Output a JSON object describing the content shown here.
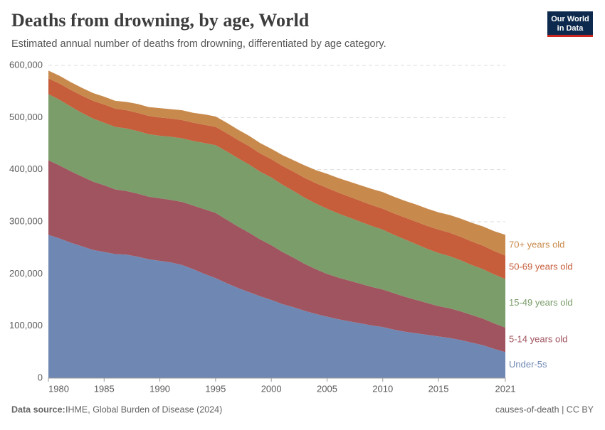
{
  "chart_data": {
    "type": "area",
    "stacked": true,
    "title": "Deaths from drowning, by age, World",
    "subtitle": "Estimated annual number of deaths from drowning, differentiated by age category.",
    "source_label": "Data source:",
    "source": "IHME, Global Burden of Disease (2024)",
    "footer_right": "causes-of-death | CC BY",
    "logo_lines": [
      "Our World",
      "in Data"
    ],
    "x": [
      1980,
      1981,
      1982,
      1983,
      1984,
      1985,
      1986,
      1987,
      1988,
      1989,
      1990,
      1991,
      1992,
      1993,
      1994,
      1995,
      1996,
      1997,
      1998,
      1999,
      2000,
      2001,
      2002,
      2003,
      2004,
      2005,
      2006,
      2007,
      2008,
      2009,
      2010,
      2011,
      2012,
      2013,
      2014,
      2015,
      2016,
      2017,
      2018,
      2019,
      2020,
      2021
    ],
    "xlim": [
      1980,
      2021
    ],
    "xticks": [
      1980,
      1985,
      1990,
      1995,
      2000,
      2005,
      2010,
      2015,
      2021
    ],
    "ylim": [
      0,
      600000
    ],
    "yticks": [
      0,
      {
        "value": 100000,
        "label": "100,000"
      },
      {
        "value": 200000,
        "label": "200,000"
      },
      {
        "value": 300000,
        "label": "300,000"
      },
      {
        "value": 400000,
        "label": "400,000"
      },
      {
        "value": 500000,
        "label": "500,000"
      },
      {
        "value": 600000,
        "label": "600,000"
      }
    ],
    "grid": true,
    "legend": "right",
    "series": [
      {
        "name": "Under-5s",
        "color": "#6f88b3",
        "values": [
          275000,
          268000,
          260000,
          253000,
          246000,
          242000,
          238000,
          237000,
          233000,
          228000,
          225000,
          222000,
          217000,
          209000,
          200000,
          192000,
          182000,
          173000,
          165000,
          157000,
          150000,
          142000,
          136000,
          129000,
          123000,
          118000,
          113000,
          109000,
          105000,
          101000,
          98000,
          93000,
          89000,
          86000,
          83000,
          80000,
          77000,
          73000,
          68000,
          63000,
          56000,
          50000
        ]
      },
      {
        "name": "5-14 years old",
        "color": "#a0545f",
        "values": [
          143000,
          140000,
          137000,
          134000,
          131000,
          128000,
          124000,
          122000,
          121000,
          120000,
          120000,
          120000,
          121000,
          122000,
          124000,
          125000,
          122000,
          118000,
          114000,
          109000,
          105000,
          100000,
          95000,
          90000,
          86000,
          82000,
          80000,
          78000,
          76000,
          74000,
          72000,
          70000,
          67000,
          64000,
          61000,
          58000,
          57000,
          55000,
          53000,
          51000,
          49000,
          47000
        ]
      },
      {
        "name": "15-49 years old",
        "color": "#7a9d6a",
        "values": [
          127000,
          126000,
          124000,
          122000,
          121000,
          120000,
          120000,
          120000,
          120000,
          120000,
          120000,
          121000,
          122000,
          124000,
          127000,
          130000,
          131000,
          131000,
          131000,
          130000,
          130000,
          129000,
          128000,
          127000,
          126000,
          125000,
          123000,
          121000,
          119000,
          117000,
          115000,
          112000,
          110000,
          107000,
          104000,
          102000,
          100000,
          98000,
          96000,
          95000,
          94000,
          93000
        ]
      },
      {
        "name": "50-69 years old",
        "color": "#c65d3b",
        "values": [
          30000,
          31000,
          32000,
          33000,
          34000,
          35000,
          35000,
          35000,
          35000,
          35000,
          35000,
          35000,
          35000,
          35000,
          35000,
          35000,
          35000,
          35000,
          35000,
          35000,
          35000,
          36000,
          37000,
          38000,
          39000,
          40000,
          40000,
          40000,
          40000,
          40000,
          40000,
          41000,
          42000,
          43000,
          44000,
          45000,
          45000,
          45000,
          45000,
          45000,
          45000,
          45000
        ]
      },
      {
        "name": "70+ years old",
        "color": "#c88a4c",
        "values": [
          15000,
          15000,
          15000,
          15000,
          15000,
          15000,
          15000,
          16000,
          17000,
          17000,
          18000,
          18000,
          19000,
          19000,
          20000,
          20000,
          20000,
          20000,
          20000,
          20000,
          20000,
          21000,
          22000,
          24000,
          25000,
          27000,
          28000,
          29000,
          30000,
          31000,
          32000,
          32000,
          32000,
          33000,
          33000,
          33000,
          34000,
          35000,
          36000,
          37000,
          38000,
          40000
        ]
      }
    ]
  }
}
